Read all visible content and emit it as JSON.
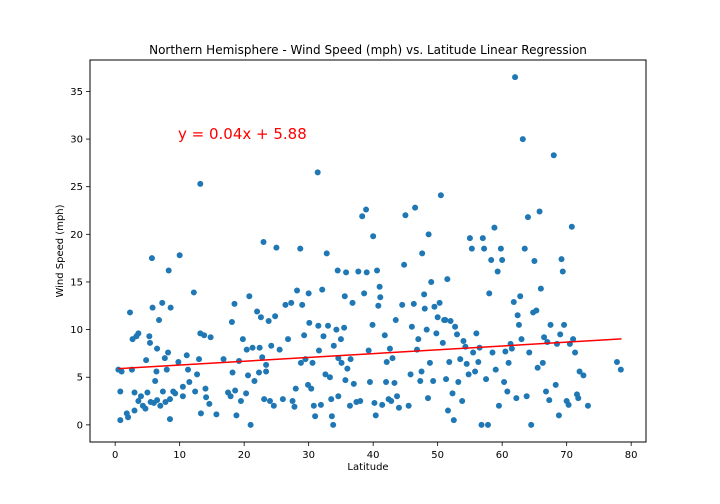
{
  "chart_data": {
    "type": "scatter",
    "title": "Northern Hemisphere - Wind Speed (mph) vs. Latitude Linear Regression",
    "xlabel": "Latitude",
    "ylabel": "Wind Speed (mph)",
    "xlim": [
      -3.9,
      82.3
    ],
    "ylim": [
      -1.8,
      38.3
    ],
    "xticks": [
      0,
      10,
      20,
      30,
      40,
      50,
      60,
      70,
      80
    ],
    "yticks": [
      0,
      5,
      10,
      15,
      20,
      25,
      30,
      35
    ],
    "grid": false,
    "colors": {
      "points": "#1f77b4",
      "regression": "#ff0000"
    },
    "annotation": {
      "text": "y = 0.04x + 5.88",
      "x": 10,
      "y": 30
    },
    "regression": {
      "slope": 0.04,
      "intercept": 5.88,
      "x_range": [
        0.5,
        78.5
      ]
    },
    "points": [
      [
        0.5,
        5.8
      ],
      [
        0.8,
        3.5
      ],
      [
        0.8,
        0.5
      ],
      [
        1.0,
        5.6
      ],
      [
        1.8,
        1.2
      ],
      [
        2.0,
        0.8
      ],
      [
        2.3,
        11.8
      ],
      [
        2.6,
        5.8
      ],
      [
        2.7,
        9.0
      ],
      [
        3.0,
        1.5
      ],
      [
        3.0,
        3.4
      ],
      [
        3.3,
        9.3
      ],
      [
        3.6,
        2.5
      ],
      [
        3.6,
        9.6
      ],
      [
        4.0,
        3.0
      ],
      [
        4.3,
        2.0
      ],
      [
        4.7,
        1.7
      ],
      [
        4.8,
        6.8
      ],
      [
        5.0,
        3.4
      ],
      [
        5.3,
        9.3
      ],
      [
        5.4,
        8.6
      ],
      [
        5.5,
        2.4
      ],
      [
        5.7,
        17.5
      ],
      [
        5.8,
        12.3
      ],
      [
        6.0,
        2.3
      ],
      [
        6.2,
        4.6
      ],
      [
        6.4,
        5.6
      ],
      [
        6.5,
        2.6
      ],
      [
        6.5,
        8.0
      ],
      [
        6.8,
        11.0
      ],
      [
        7.0,
        2.0
      ],
      [
        7.3,
        12.8
      ],
      [
        7.4,
        3.5
      ],
      [
        7.7,
        7.0
      ],
      [
        7.8,
        2.4
      ],
      [
        8.0,
        5.8
      ],
      [
        8.2,
        7.6
      ],
      [
        8.3,
        16.2
      ],
      [
        8.5,
        0.6
      ],
      [
        8.5,
        2.7
      ],
      [
        8.6,
        12.3
      ],
      [
        9.0,
        3.5
      ],
      [
        9.3,
        3.3
      ],
      [
        9.8,
        6.6
      ],
      [
        10.0,
        17.8
      ],
      [
        10.5,
        4.0
      ],
      [
        10.5,
        3.0
      ],
      [
        11.1,
        7.3
      ],
      [
        11.3,
        5.8
      ],
      [
        11.5,
        4.5
      ],
      [
        12.2,
        13.9
      ],
      [
        12.4,
        3.5
      ],
      [
        12.7,
        5.3
      ],
      [
        13.0,
        6.9
      ],
      [
        13.2,
        25.3
      ],
      [
        13.2,
        9.6
      ],
      [
        13.3,
        1.2
      ],
      [
        13.8,
        9.4
      ],
      [
        14.0,
        3.8
      ],
      [
        14.1,
        2.9
      ],
      [
        14.6,
        2.2
      ],
      [
        14.8,
        9.2
      ],
      [
        15.7,
        1.1
      ],
      [
        16.8,
        6.9
      ],
      [
        17.5,
        3.4
      ],
      [
        17.9,
        3.0
      ],
      [
        18.1,
        10.8
      ],
      [
        18.2,
        5.5
      ],
      [
        18.5,
        12.7
      ],
      [
        18.6,
        3.6
      ],
      [
        18.8,
        1.0
      ],
      [
        19.2,
        6.7
      ],
      [
        19.5,
        2.5
      ],
      [
        19.8,
        9.0
      ],
      [
        20.3,
        3.3
      ],
      [
        20.4,
        7.9
      ],
      [
        20.6,
        5.2
      ],
      [
        20.8,
        13.5
      ],
      [
        21.0,
        0.0
      ],
      [
        21.3,
        8.1
      ],
      [
        21.6,
        4.6
      ],
      [
        22.0,
        11.9
      ],
      [
        22.3,
        5.5
      ],
      [
        22.4,
        8.1
      ],
      [
        22.6,
        11.3
      ],
      [
        22.8,
        7.1
      ],
      [
        23.0,
        19.2
      ],
      [
        23.1,
        2.7
      ],
      [
        23.4,
        6.3
      ],
      [
        23.4,
        5.6
      ],
      [
        23.8,
        10.9
      ],
      [
        24.0,
        2.5
      ],
      [
        24.2,
        8.3
      ],
      [
        24.6,
        2.0
      ],
      [
        24.8,
        11.4
      ],
      [
        25.0,
        18.6
      ],
      [
        25.5,
        7.9
      ],
      [
        26.0,
        2.7
      ],
      [
        26.4,
        12.6
      ],
      [
        26.8,
        9.0
      ],
      [
        27.3,
        12.8
      ],
      [
        27.5,
        2.5
      ],
      [
        27.8,
        1.9
      ],
      [
        28.0,
        3.8
      ],
      [
        28.2,
        14.1
      ],
      [
        28.7,
        18.5
      ],
      [
        28.8,
        6.5
      ],
      [
        29.0,
        12.6
      ],
      [
        29.3,
        9.4
      ],
      [
        29.5,
        6.9
      ],
      [
        29.9,
        4.2
      ],
      [
        30.0,
        13.8
      ],
      [
        30.1,
        10.7
      ],
      [
        30.4,
        3.8
      ],
      [
        30.6,
        6.5
      ],
      [
        30.8,
        2.0
      ],
      [
        31.0,
        0.9
      ],
      [
        31.4,
        26.5
      ],
      [
        31.5,
        10.4
      ],
      [
        31.6,
        7.8
      ],
      [
        31.9,
        2.1
      ],
      [
        32.1,
        14.2
      ],
      [
        32.3,
        9.3
      ],
      [
        32.6,
        5.3
      ],
      [
        32.8,
        18.0
      ],
      [
        33.0,
        10.4
      ],
      [
        33.3,
        5.0
      ],
      [
        33.5,
        2.7
      ],
      [
        33.6,
        0.9
      ],
      [
        33.8,
        0.0
      ],
      [
        33.9,
        8.3
      ],
      [
        34.3,
        10.0
      ],
      [
        34.5,
        16.2
      ],
      [
        34.6,
        7.0
      ],
      [
        34.6,
        3.0
      ],
      [
        35.0,
        9.0
      ],
      [
        35.1,
        6.5
      ],
      [
        35.5,
        10.2
      ],
      [
        35.6,
        13.5
      ],
      [
        35.7,
        4.7
      ],
      [
        35.8,
        16.0
      ],
      [
        36.0,
        5.9
      ],
      [
        36.4,
        2.0
      ],
      [
        36.5,
        6.9
      ],
      [
        36.8,
        12.8
      ],
      [
        37.0,
        4.3
      ],
      [
        37.4,
        2.4
      ],
      [
        37.7,
        16.1
      ],
      [
        38.0,
        2.5
      ],
      [
        38.3,
        21.9
      ],
      [
        38.6,
        13.8
      ],
      [
        38.9,
        22.6
      ],
      [
        39.0,
        16.0
      ],
      [
        39.3,
        7.8
      ],
      [
        39.5,
        4.5
      ],
      [
        39.9,
        10.5
      ],
      [
        40.0,
        19.8
      ],
      [
        40.2,
        2.3
      ],
      [
        40.4,
        1.0
      ],
      [
        40.6,
        16.2
      ],
      [
        40.8,
        12.5
      ],
      [
        41.0,
        14.5
      ],
      [
        41.1,
        13.4
      ],
      [
        41.4,
        2.1
      ],
      [
        41.8,
        9.4
      ],
      [
        42.0,
        4.5
      ],
      [
        42.1,
        6.6
      ],
      [
        42.4,
        2.7
      ],
      [
        42.6,
        8.0
      ],
      [
        42.8,
        2.5
      ],
      [
        43.0,
        7.0
      ],
      [
        43.3,
        4.4
      ],
      [
        43.5,
        11.0
      ],
      [
        43.7,
        3.0
      ],
      [
        44.0,
        1.8
      ],
      [
        44.5,
        12.6
      ],
      [
        44.8,
        16.8
      ],
      [
        45.0,
        22.0
      ],
      [
        45.5,
        2.0
      ],
      [
        45.8,
        5.3
      ],
      [
        46.0,
        10.3
      ],
      [
        46.3,
        12.7
      ],
      [
        46.5,
        22.8
      ],
      [
        46.8,
        7.9
      ],
      [
        47.0,
        9.0
      ],
      [
        47.3,
        4.6
      ],
      [
        47.5,
        5.6
      ],
      [
        47.6,
        18.0
      ],
      [
        47.9,
        13.7
      ],
      [
        48.0,
        12.2
      ],
      [
        48.3,
        10.0
      ],
      [
        48.5,
        2.8
      ],
      [
        48.6,
        20.0
      ],
      [
        48.8,
        6.5
      ],
      [
        49.0,
        15.0
      ],
      [
        49.3,
        4.6
      ],
      [
        49.5,
        12.4
      ],
      [
        49.8,
        9.6
      ],
      [
        50.0,
        11.3
      ],
      [
        50.3,
        12.8
      ],
      [
        50.5,
        24.1
      ],
      [
        50.8,
        8.6
      ],
      [
        51.0,
        11.0
      ],
      [
        51.2,
        11.0
      ],
      [
        51.3,
        4.8
      ],
      [
        51.5,
        15.3
      ],
      [
        51.6,
        1.5
      ],
      [
        51.8,
        6.6
      ],
      [
        52.0,
        10.9
      ],
      [
        52.3,
        3.3
      ],
      [
        52.5,
        0.5
      ],
      [
        52.7,
        10.3
      ],
      [
        53.0,
        9.5
      ],
      [
        53.2,
        4.5
      ],
      [
        53.5,
        6.9
      ],
      [
        53.8,
        2.5
      ],
      [
        54.0,
        8.8
      ],
      [
        54.3,
        8.2
      ],
      [
        54.5,
        6.4
      ],
      [
        54.8,
        5.3
      ],
      [
        55.0,
        19.6
      ],
      [
        55.3,
        18.5
      ],
      [
        55.5,
        7.6
      ],
      [
        55.8,
        5.6
      ],
      [
        56.0,
        9.6
      ],
      [
        56.3,
        6.6
      ],
      [
        56.5,
        8.1
      ],
      [
        56.8,
        0.0
      ],
      [
        57.0,
        19.6
      ],
      [
        57.2,
        18.5
      ],
      [
        57.5,
        4.8
      ],
      [
        57.8,
        0.0
      ],
      [
        58.0,
        13.8
      ],
      [
        58.3,
        17.3
      ],
      [
        58.5,
        7.6
      ],
      [
        58.8,
        20.7
      ],
      [
        59.0,
        5.8
      ],
      [
        59.3,
        16.1
      ],
      [
        59.5,
        2.0
      ],
      [
        59.8,
        18.5
      ],
      [
        60.0,
        17.3
      ],
      [
        60.3,
        4.5
      ],
      [
        60.5,
        7.7
      ],
      [
        60.8,
        3.5
      ],
      [
        61.0,
        6.5
      ],
      [
        61.3,
        8.5
      ],
      [
        61.5,
        8.0
      ],
      [
        61.8,
        12.9
      ],
      [
        62.0,
        36.5
      ],
      [
        62.2,
        2.8
      ],
      [
        62.4,
        11.5
      ],
      [
        62.6,
        10.5
      ],
      [
        62.8,
        13.5
      ],
      [
        63.0,
        9.0
      ],
      [
        63.2,
        30.0
      ],
      [
        63.5,
        18.5
      ],
      [
        63.8,
        3.0
      ],
      [
        64.0,
        21.8
      ],
      [
        64.2,
        7.6
      ],
      [
        64.5,
        0.0
      ],
      [
        64.8,
        11.8
      ],
      [
        65.0,
        17.2
      ],
      [
        65.3,
        12.0
      ],
      [
        65.5,
        6.0
      ],
      [
        65.8,
        22.4
      ],
      [
        66.0,
        14.3
      ],
      [
        66.3,
        6.5
      ],
      [
        66.5,
        9.2
      ],
      [
        66.8,
        3.5
      ],
      [
        67.0,
        8.7
      ],
      [
        67.3,
        2.6
      ],
      [
        67.5,
        10.5
      ],
      [
        68.0,
        28.3
      ],
      [
        68.3,
        4.2
      ],
      [
        68.5,
        8.5
      ],
      [
        68.8,
        1.0
      ],
      [
        69.0,
        9.5
      ],
      [
        69.2,
        17.4
      ],
      [
        69.4,
        16.1
      ],
      [
        69.6,
        10.5
      ],
      [
        70.0,
        2.5
      ],
      [
        70.3,
        2.1
      ],
      [
        70.5,
        8.5
      ],
      [
        70.8,
        20.8
      ],
      [
        71.0,
        9.0
      ],
      [
        71.3,
        7.6
      ],
      [
        71.6,
        3.2
      ],
      [
        71.8,
        2.8
      ],
      [
        72.0,
        5.6
      ],
      [
        72.6,
        5.2
      ],
      [
        73.3,
        2.0
      ],
      [
        77.8,
        6.6
      ],
      [
        78.4,
        5.8
      ]
    ]
  }
}
